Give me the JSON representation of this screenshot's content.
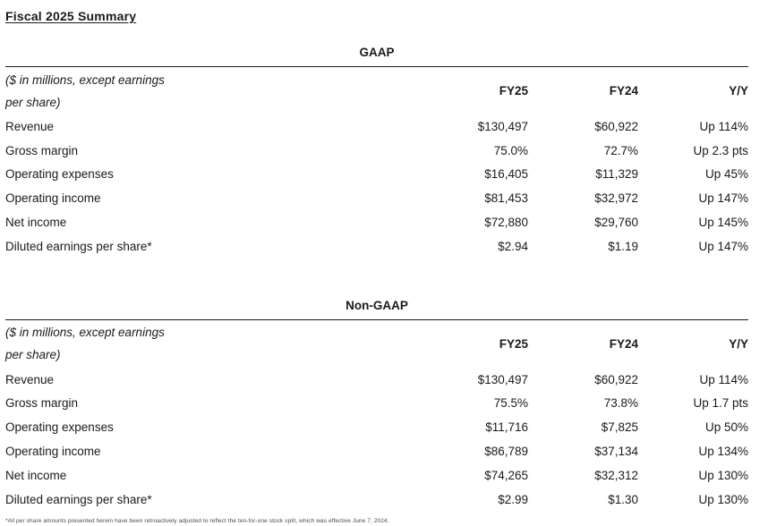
{
  "page": {
    "title": "Fiscal 2025 Summary",
    "footnote": "*All per share amounts presented herein have been retroactively adjusted to reflect the ten-for-one stock split, which was effective June 7, 2024."
  },
  "tables": [
    {
      "heading": "GAAP",
      "unit_note_line1": "($ in millions, except earnings",
      "unit_note_line2": "per share)",
      "columns": [
        "FY25",
        "FY24",
        "Y/Y"
      ],
      "rows": [
        {
          "label": "Revenue",
          "values": [
            "$130,497",
            "$60,922",
            "Up 114%"
          ]
        },
        {
          "label": "Gross margin",
          "values": [
            "75.0%",
            "72.7%",
            "Up 2.3 pts"
          ]
        },
        {
          "label": "Operating expenses",
          "values": [
            "$16,405",
            "$11,329",
            "Up 45%"
          ]
        },
        {
          "label": "Operating income",
          "values": [
            "$81,453",
            "$32,972",
            "Up 147%"
          ]
        },
        {
          "label": "Net income",
          "values": [
            "$72,880",
            "$29,760",
            "Up 145%"
          ]
        },
        {
          "label": "Diluted earnings per share*",
          "values": [
            "$2.94",
            "$1.19",
            "Up 147%"
          ]
        }
      ]
    },
    {
      "heading": "Non-GAAP",
      "unit_note_line1": "($ in millions, except earnings",
      "unit_note_line2": "per share)",
      "columns": [
        "FY25",
        "FY24",
        "Y/Y"
      ],
      "rows": [
        {
          "label": "Revenue",
          "values": [
            "$130,497",
            "$60,922",
            "Up 114%"
          ]
        },
        {
          "label": "Gross margin",
          "values": [
            "75.5%",
            "73.8%",
            "Up 1.7 pts"
          ]
        },
        {
          "label": "Operating expenses",
          "values": [
            "$11,716",
            "$7,825",
            "Up 50%"
          ]
        },
        {
          "label": "Operating income",
          "values": [
            "$86,789",
            "$37,134",
            "Up 134%"
          ]
        },
        {
          "label": "Net income",
          "values": [
            "$74,265",
            "$32,312",
            "Up 130%"
          ]
        },
        {
          "label": "Diluted earnings per share*",
          "values": [
            "$2.99",
            "$1.30",
            "Up 130%"
          ]
        }
      ]
    }
  ]
}
